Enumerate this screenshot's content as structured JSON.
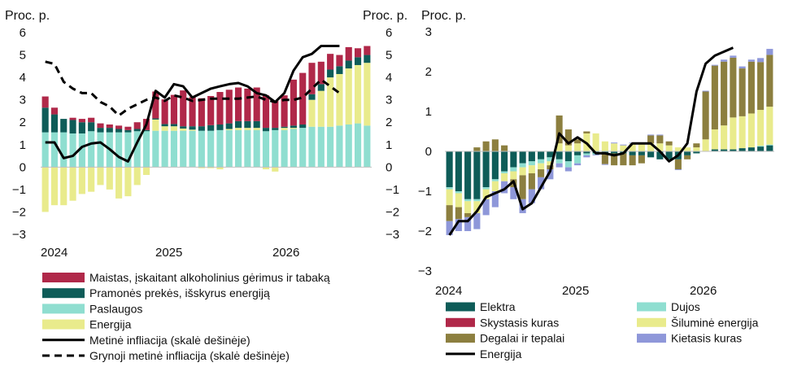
{
  "chart_data": [
    {
      "type": "bar",
      "stacked": true,
      "unit_left": "Proc. p.",
      "unit_right": "Proc. p.",
      "ylim": [
        -3,
        6
      ],
      "yticks": [
        -3,
        -2,
        -1,
        0,
        1,
        2,
        3,
        4,
        5,
        6
      ],
      "xlabels": [
        "2024",
        "2025",
        "2026"
      ],
      "x_start": "2024-01",
      "n_months": 36,
      "legend_position": "bottom",
      "series": [
        {
          "name": "Paslaugos",
          "kind": "bar",
          "color": "#8fded0",
          "values": [
            1.55,
            1.55,
            1.55,
            1.5,
            1.5,
            1.6,
            1.55,
            1.55,
            1.55,
            1.55,
            1.6,
            1.6,
            1.62,
            1.62,
            1.62,
            1.62,
            1.62,
            1.62,
            1.62,
            1.65,
            1.65,
            1.65,
            1.65,
            1.65,
            1.6,
            1.65,
            1.65,
            1.7,
            1.75,
            1.8,
            1.8,
            1.8,
            1.85,
            1.9,
            1.95,
            1.85
          ]
        },
        {
          "name": "Energija",
          "kind": "bar",
          "color": "#e9eb8c",
          "values": [
            -2.0,
            -1.7,
            -1.7,
            -1.5,
            -1.2,
            -1.1,
            -0.8,
            -1.0,
            -1.4,
            -1.3,
            -0.8,
            -0.35,
            0.5,
            0.2,
            0.2,
            0.1,
            0.05,
            -0.05,
            -0.05,
            -0.1,
            0.05,
            0.1,
            0.1,
            0.1,
            -0.1,
            -0.2,
            0.1,
            0.05,
            0.0,
            1.2,
            1.6,
            2.2,
            2.3,
            2.5,
            2.6,
            2.8
          ]
        },
        {
          "name": "Pramonės prekės, išskyrus energiją",
          "kind": "bar",
          "color": "#0e5c58",
          "values": [
            1.1,
            0.8,
            0.6,
            0.6,
            0.5,
            0.4,
            0.2,
            0.2,
            0.15,
            0.1,
            0.1,
            0.05,
            0.05,
            0.1,
            0.1,
            0.1,
            0.15,
            0.2,
            0.25,
            0.25,
            0.25,
            0.3,
            0.3,
            0.3,
            0.15,
            0.1,
            0.05,
            0.1,
            0.15,
            0.25,
            0.3,
            0.35,
            0.35,
            0.35,
            0.35,
            0.35
          ]
        },
        {
          "name": "Maistas, įskaitant alkoholinius gėrimus ir tabaką",
          "kind": "bar",
          "color": "#b02849",
          "values": [
            0.5,
            0.3,
            0.0,
            0.1,
            0.15,
            0.2,
            0.2,
            0.15,
            0.15,
            0.15,
            0.3,
            0.5,
            1.2,
            1.1,
            1.3,
            1.6,
            1.3,
            1.25,
            1.3,
            1.45,
            1.5,
            1.5,
            1.45,
            1.5,
            1.45,
            1.2,
            1.4,
            2.05,
            2.3,
            1.4,
            1.0,
            0.7,
            0.5,
            0.6,
            0.4,
            0.4
          ]
        },
        {
          "name": "Metinė infliacija (skalė dešinėje)",
          "kind": "line",
          "style": "solid",
          "color": "#000000",
          "values": [
            1.1,
            1.1,
            0.4,
            0.5,
            0.9,
            1.05,
            1.1,
            0.8,
            0.45,
            0.25,
            1.1,
            1.9,
            3.4,
            3.1,
            3.7,
            3.6,
            3.1,
            3.3,
            3.5,
            3.6,
            3.7,
            3.75,
            3.6,
            3.3,
            3.2,
            2.9,
            3.3,
            4.3,
            4.9,
            5.05,
            5.4,
            5.4,
            5.4,
            null,
            null,
            null
          ]
        },
        {
          "name": "Grynoji metinė infliacija (skalė dešinėje)",
          "kind": "line",
          "style": "dashed",
          "color": "#000000",
          "values": [
            4.7,
            4.6,
            3.8,
            3.5,
            3.3,
            3.3,
            2.9,
            2.7,
            2.3,
            2.6,
            2.8,
            3.0,
            3.1,
            2.95,
            3.2,
            3.1,
            2.95,
            3.0,
            3.05,
            3.05,
            3.05,
            3.05,
            3.1,
            3.15,
            3.0,
            2.9,
            3.0,
            3.0,
            3.1,
            3.5,
            3.9,
            3.6,
            3.3,
            null,
            null,
            null
          ]
        }
      ]
    },
    {
      "type": "bar",
      "stacked": true,
      "unit_left": "Proc. p.",
      "ylim": [
        -3,
        3
      ],
      "yticks": [
        -3,
        -2,
        -1,
        0,
        1,
        2,
        3
      ],
      "xlabels": [
        "2024",
        "2025",
        "2026"
      ],
      "x_start": "2024-01",
      "n_months": 36,
      "legend_position": "bottom",
      "series": [
        {
          "name": "Elektra",
          "kind": "bar",
          "color": "#0e5c58",
          "values": [
            -0.9,
            -1.0,
            -1.2,
            -1.2,
            -0.9,
            -0.7,
            -0.5,
            -0.4,
            -0.3,
            -0.25,
            -0.2,
            -0.15,
            -0.2,
            -0.25,
            -0.1,
            -0.05,
            -0.05,
            -0.05,
            -0.05,
            -0.05,
            -0.1,
            -0.1,
            -0.15,
            -0.2,
            -0.2,
            -0.2,
            -0.1,
            -0.05,
            0.0,
            0.05,
            0.05,
            0.05,
            0.08,
            0.1,
            0.12,
            0.15
          ]
        },
        {
          "name": "Dujos",
          "kind": "bar",
          "color": "#8fded0",
          "values": [
            -0.05,
            -0.05,
            -0.05,
            -0.05,
            -0.05,
            -0.05,
            -0.05,
            -0.1,
            -0.1,
            -0.1,
            -0.1,
            -0.1,
            -0.1,
            -0.15,
            -0.2,
            -0.05,
            -0.03,
            -0.02,
            0.0,
            0.0,
            0.0,
            0.0,
            0.0,
            0.0,
            0.0,
            0.0,
            0.0,
            0.0,
            0.0,
            0.0,
            0.0,
            0.0,
            0.0,
            0.0,
            0.02,
            0.02
          ]
        },
        {
          "name": "Skystasis kuras",
          "kind": "bar",
          "color": "#b02849",
          "values": [
            0.0,
            0.0,
            0.0,
            0.0,
            0.0,
            0.0,
            0.0,
            0.0,
            0.0,
            0.0,
            0.0,
            0.0,
            0.0,
            0.0,
            0.0,
            0.0,
            0.0,
            0.0,
            0.0,
            0.0,
            0.0,
            0.0,
            0.0,
            0.0,
            0.0,
            0.0,
            0.0,
            0.0,
            0.0,
            0.0,
            0.0,
            0.0,
            0.0,
            0.0,
            0.0,
            0.0
          ]
        },
        {
          "name": "Šiluminė energija",
          "kind": "bar",
          "color": "#e9eb8c",
          "values": [
            -0.4,
            -0.35,
            -0.3,
            -0.3,
            -0.25,
            -0.25,
            -0.2,
            -0.2,
            -0.2,
            -0.2,
            -0.15,
            -0.1,
            0.2,
            0.15,
            0.2,
            0.45,
            0.45,
            0.25,
            0.2,
            0.15,
            0.2,
            0.2,
            0.2,
            0.2,
            0.15,
            0.1,
            0.1,
            0.1,
            0.3,
            0.5,
            0.6,
            0.8,
            0.8,
            0.85,
            0.9,
            0.95
          ]
        },
        {
          "name": "Degalai ir tepalai",
          "kind": "bar",
          "color": "#8c7f3f",
          "values": [
            -0.4,
            -0.3,
            -0.1,
            0.1,
            0.25,
            0.3,
            0.15,
            -0.2,
            -0.6,
            -0.4,
            -0.2,
            -0.1,
            0.7,
            0.4,
            0.1,
            0.05,
            0.0,
            -0.25,
            -0.3,
            -0.3,
            -0.25,
            -0.2,
            0.2,
            0.2,
            0.1,
            -0.25,
            -0.1,
            0.1,
            1.2,
            1.6,
            1.6,
            1.5,
            1.2,
            1.3,
            1.2,
            1.3
          ]
        },
        {
          "name": "Kietasis kuras",
          "kind": "bar",
          "color": "#8e97d9",
          "values": [
            -0.35,
            -0.3,
            -0.35,
            -0.4,
            -0.4,
            -0.4,
            -0.3,
            -0.3,
            -0.35,
            -0.35,
            -0.3,
            -0.25,
            -0.1,
            -0.1,
            -0.05,
            -0.05,
            -0.02,
            -0.02,
            0.02,
            0.02,
            0.02,
            0.02,
            0.02,
            0.02,
            0.0,
            -0.02,
            0.0,
            0.0,
            0.02,
            0.02,
            0.05,
            0.05,
            0.05,
            0.05,
            0.1,
            0.15
          ]
        },
        {
          "name": "Energija",
          "kind": "line",
          "style": "solid",
          "color": "#000000",
          "values": [
            -2.1,
            -1.75,
            -1.75,
            -1.5,
            -1.15,
            -1.05,
            -0.95,
            -0.75,
            -1.45,
            -1.3,
            -0.9,
            -0.5,
            0.45,
            0.2,
            0.35,
            0.2,
            -0.05,
            -0.05,
            -0.1,
            -0.05,
            0.2,
            0.2,
            0.2,
            0.0,
            -0.25,
            -0.1,
            0.2,
            1.5,
            2.2,
            2.4,
            2.5,
            2.6,
            null,
            null,
            null,
            null
          ]
        }
      ]
    }
  ]
}
